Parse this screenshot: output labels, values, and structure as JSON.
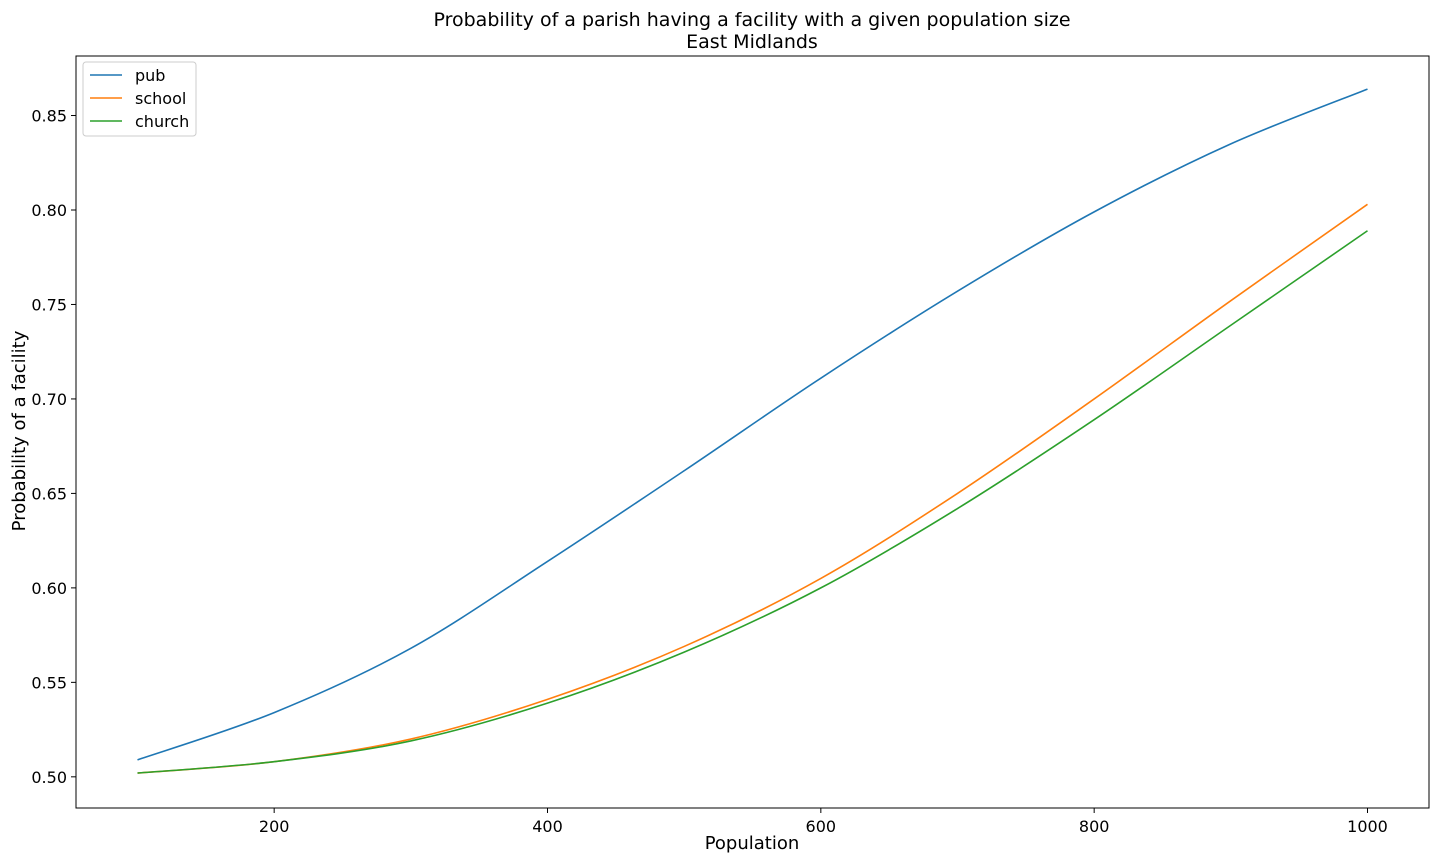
{
  "chart_data": {
    "type": "line",
    "title": "Probability of a parish having a facility with a given population size",
    "subtitle": "East Midlands",
    "xlabel": "Population",
    "ylabel": "Probability of a facility",
    "xlim": [
      55,
      1045
    ],
    "ylim": [
      0.4835,
      0.8815
    ],
    "xticks": [
      200,
      400,
      600,
      800,
      1000
    ],
    "xtick_labels": [
      "200",
      "400",
      "600",
      "800",
      "1000"
    ],
    "yticks": [
      0.5,
      0.55,
      0.6,
      0.65,
      0.7,
      0.75,
      0.8,
      0.85
    ],
    "ytick_labels": [
      "0.50",
      "0.55",
      "0.60",
      "0.65",
      "0.70",
      "0.75",
      "0.80",
      "0.85"
    ],
    "grid": false,
    "legend_position": "top-left",
    "x": [
      100,
      200,
      300,
      400,
      500,
      600,
      700,
      800,
      900,
      1000
    ],
    "series": [
      {
        "name": "pub",
        "color": "#1f77b4",
        "values": [
          0.509,
          0.534,
          0.568,
          0.614,
          0.662,
          0.711,
          0.757,
          0.799,
          0.835,
          0.864
        ]
      },
      {
        "name": "school",
        "color": "#ff7f0e",
        "values": [
          0.502,
          0.508,
          0.52,
          0.541,
          0.569,
          0.605,
          0.65,
          0.7,
          0.752,
          0.803
        ]
      },
      {
        "name": "church",
        "color": "#2ca02c",
        "values": [
          0.502,
          0.508,
          0.519,
          0.539,
          0.566,
          0.6,
          0.642,
          0.689,
          0.739,
          0.789
        ]
      }
    ]
  }
}
